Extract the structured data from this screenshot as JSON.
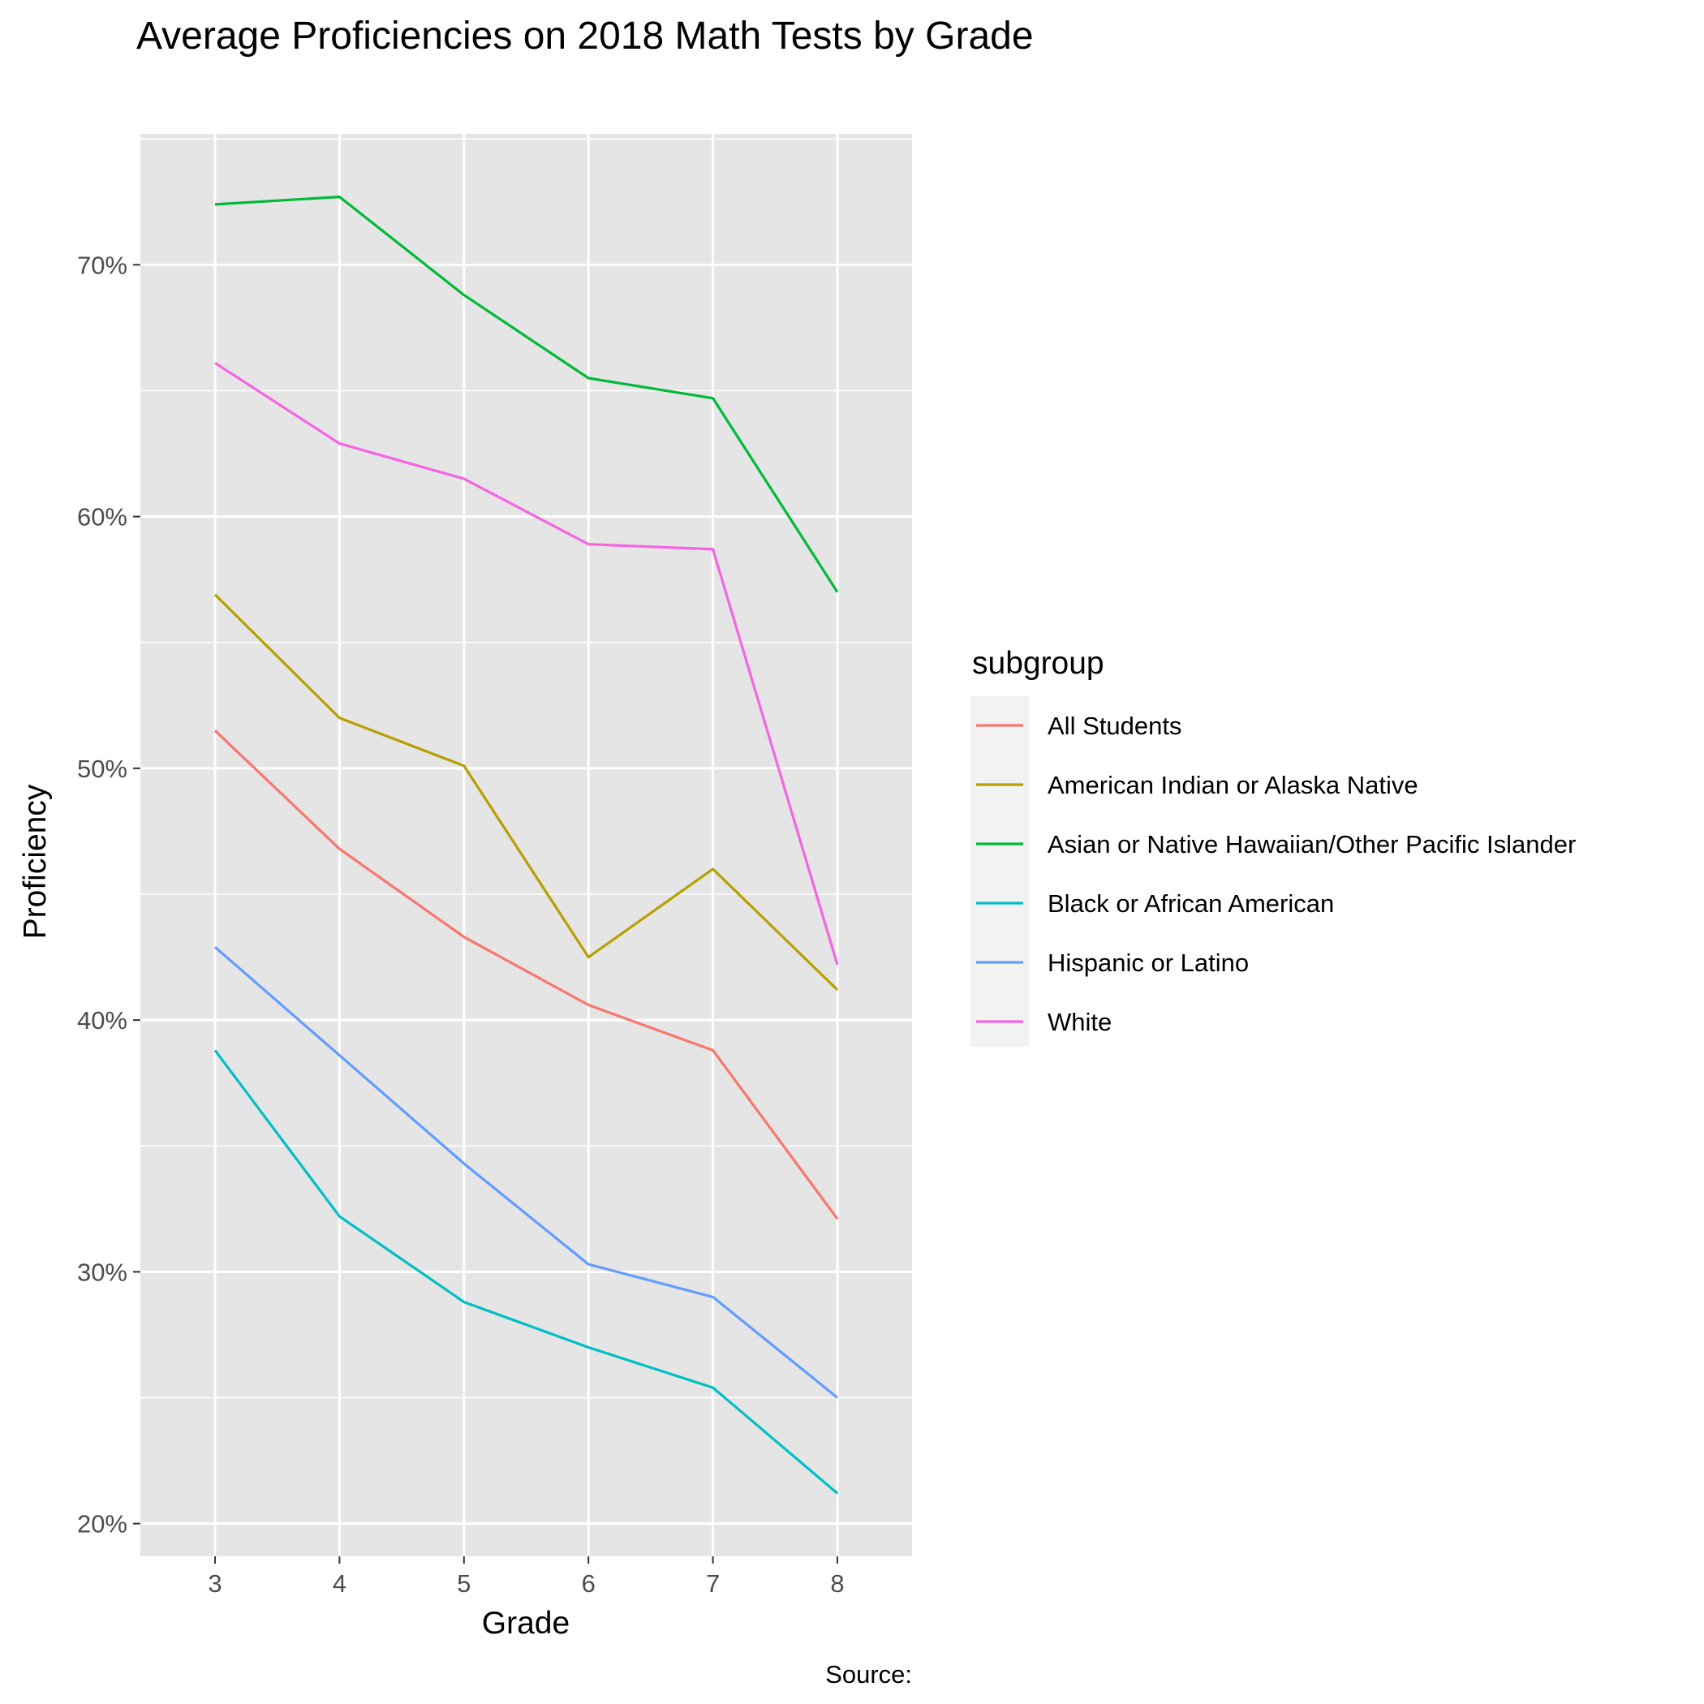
{
  "chart_data": {
    "type": "line",
    "title": "Average Proficiencies on 2018 Math Tests by Grade",
    "xlabel": "Grade",
    "ylabel": "Proficiency",
    "caption": "Source:",
    "x": [
      3,
      4,
      5,
      6,
      7,
      8
    ],
    "xlim": [
      2.4,
      8.6
    ],
    "ylim": [
      0.187,
      0.752
    ],
    "y_ticks": [
      0.2,
      0.3,
      0.4,
      0.5,
      0.6,
      0.7
    ],
    "y_tick_labels": [
      "20%",
      "30%",
      "40%",
      "50%",
      "60%",
      "70%"
    ],
    "x_tick_labels": [
      "3",
      "4",
      "5",
      "6",
      "7",
      "8"
    ],
    "grid": true,
    "legend": {
      "title": "subgroup",
      "position": "right"
    },
    "colors": {
      "panel_background": "#e5e5e5",
      "grid": "#ffffff"
    },
    "series": [
      {
        "name": "All Students",
        "color": "#F8766D",
        "values": [
          0.515,
          0.468,
          0.433,
          0.406,
          0.388,
          0.321
        ]
      },
      {
        "name": "American Indian or Alaska Native",
        "color": "#B79F00",
        "values": [
          0.569,
          0.52,
          0.501,
          0.425,
          0.46,
          0.412
        ]
      },
      {
        "name": "Asian or Native Hawaiian/Other Pacific Islander",
        "color": "#00BA38",
        "values": [
          0.724,
          0.727,
          0.688,
          0.655,
          0.647,
          0.57
        ]
      },
      {
        "name": "Black or African American",
        "color": "#00BFC4",
        "values": [
          0.388,
          0.322,
          0.288,
          0.27,
          0.254,
          0.212
        ]
      },
      {
        "name": "Hispanic or Latino",
        "color": "#619CFF",
        "values": [
          0.429,
          0.386,
          0.343,
          0.303,
          0.29,
          0.25
        ]
      },
      {
        "name": "White",
        "color": "#F564E3",
        "values": [
          0.661,
          0.629,
          0.615,
          0.589,
          0.587,
          0.422
        ]
      }
    ]
  }
}
